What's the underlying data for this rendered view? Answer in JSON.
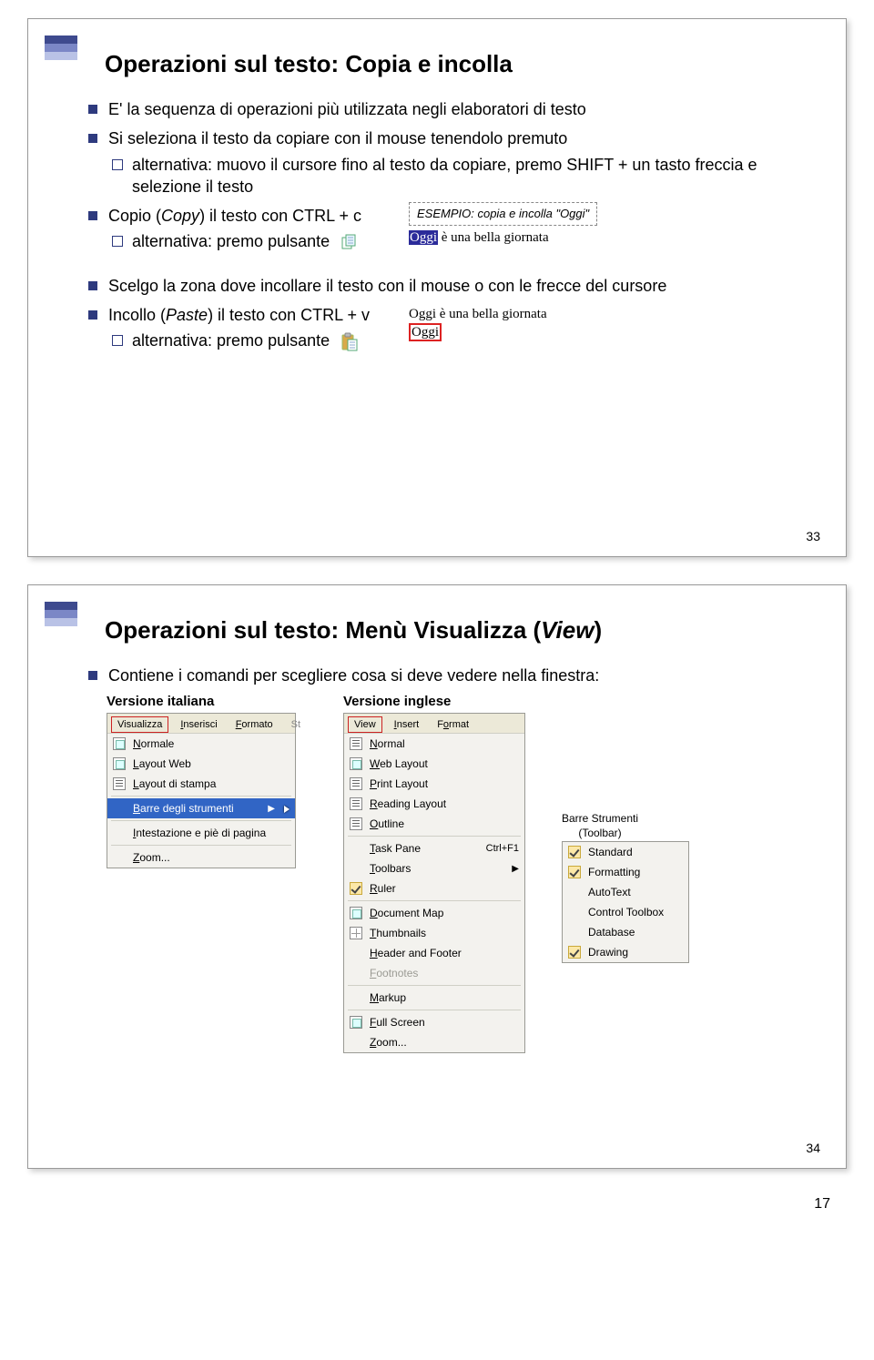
{
  "slide1": {
    "title": "Operazioni sul testo: Copia e incolla",
    "b1": "E' la sequenza di operazioni più utilizzata negli elaboratori di testo",
    "b2": "Si seleziona il testo da copiare con il mouse tenendolo premuto",
    "b2s": "alternativa: muovo il cursore fino al testo da copiare, premo SHIFT + un tasto freccia e selezione il testo",
    "b3_a": "Copio (",
    "b3_i": "Copy",
    "b3_b": ") il testo con CTRL + c",
    "b3s": "alternativa: premo pulsante",
    "example": "ESEMPIO: copia e incolla \"Oggi\"",
    "snip1_hi": "Oggi",
    "snip1_rest": " è una bella giornata",
    "b4": "Scelgo la zona dove incollare il testo con il mouse o con le frecce del cursore",
    "b5_a": "Incollo (",
    "b5_i": "Paste",
    "b5_b": ") il testo con CTRL + v",
    "b5s": "alternativa: premo pulsante",
    "snip2_line1": "Oggi è una bella giornata",
    "snip2_line2": "Oggi",
    "page": "33"
  },
  "slide2": {
    "title_a": "Operazioni sul testo: Menù Visualizza (",
    "title_i": "View",
    "title_b": ")",
    "b1": "Contiene i comandi per scegliere cosa si deve vedere nella finestra:",
    "col_it": "Versione italiana",
    "col_en": "Versione inglese",
    "it_tabs": [
      "Visualizza",
      "Inserisci",
      "Formato",
      "St"
    ],
    "it_items": [
      {
        "label": "Normale",
        "icon": "doc"
      },
      {
        "label": "Layout Web",
        "icon": "doc"
      },
      {
        "label": "Layout di stampa",
        "icon": "lines"
      },
      {
        "label": "Barre degli strumenti",
        "hover": true,
        "arrow": true
      },
      {
        "label": "Intestazione e piè di pagina"
      },
      {
        "label": "Zoom..."
      }
    ],
    "en_tabs": [
      "View",
      "Insert",
      "Format"
    ],
    "en_items": [
      {
        "label": "Normal",
        "icon": "lines"
      },
      {
        "label": "Web Layout",
        "icon": "doc"
      },
      {
        "label": "Print Layout",
        "icon": "lines"
      },
      {
        "label": "Reading Layout",
        "icon": "lines"
      },
      {
        "label": "Outline",
        "icon": "lines"
      },
      {
        "label": "Task Pane",
        "kbd": "Ctrl+F1"
      },
      {
        "label": "Toolbars",
        "arrow": true
      },
      {
        "label": "Ruler",
        "tick": true
      },
      {
        "label": "Document Map",
        "icon": "doc"
      },
      {
        "label": "Thumbnails",
        "icon": "grid"
      },
      {
        "label": "Header and Footer"
      },
      {
        "label": "Footnotes",
        "disabled": true
      },
      {
        "label": "Markup"
      },
      {
        "label": "Full Screen",
        "icon": "doc"
      },
      {
        "label": "Zoom..."
      }
    ],
    "toolbars_caption1": "Barre Strumenti",
    "toolbars_caption2": "(Toolbar)",
    "toolbars_items": [
      {
        "label": "Standard",
        "tick": true
      },
      {
        "label": "Formatting",
        "tick": true
      },
      {
        "label": "AutoText"
      },
      {
        "label": "Control Toolbox"
      },
      {
        "label": "Database"
      },
      {
        "label": "Drawing",
        "tick": true
      }
    ],
    "page": "34"
  },
  "footer_page": "17",
  "colors": {
    "bullet": "#2e3a7e",
    "accent1": "#3e4a8e",
    "accent2": "#7b87c6",
    "accent3": "#b9c2e6",
    "menu_bg": "#f3f2ee",
    "menu_border": "#9a9a94",
    "hover": "#3165c5",
    "redbox": "#d22"
  }
}
